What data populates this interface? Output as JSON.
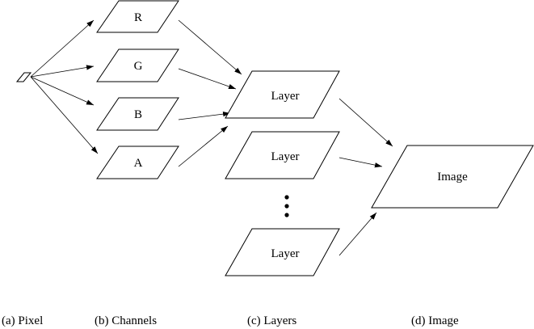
{
  "nodes": {
    "pixel": {
      "label": ""
    },
    "channels": [
      {
        "label": "R"
      },
      {
        "label": "G"
      },
      {
        "label": "B"
      },
      {
        "label": "A"
      }
    ],
    "layers": [
      {
        "label": "Layer"
      },
      {
        "label": "Layer"
      },
      {
        "label": "Layer"
      }
    ],
    "image": {
      "label": "Image"
    }
  },
  "captions": {
    "pixel": "(a) Pixel",
    "channels": "(b) Channels",
    "layers": "(c) Layers",
    "image": "(d) Image"
  }
}
